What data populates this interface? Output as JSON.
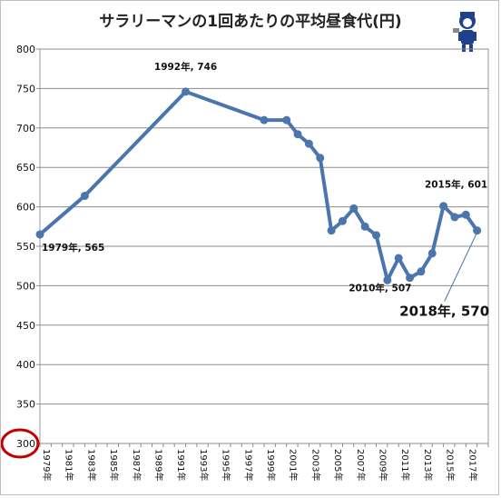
{
  "chart_data": {
    "type": "line",
    "title": "サラリーマンの1回あたりの平均昼食代(円)",
    "xlabel": "",
    "ylabel": "",
    "ylim": [
      300,
      800
    ],
    "yticks": [
      300,
      350,
      400,
      450,
      500,
      550,
      600,
      650,
      700,
      750,
      800
    ],
    "x_tick_labels": [
      "1979年",
      "1981年",
      "1983年",
      "1985年",
      "1987年",
      "1989年",
      "1991年",
      "1993年",
      "1995年",
      "1997年",
      "1999年",
      "2001年",
      "2003年",
      "2005年",
      "2007年",
      "2009年",
      "2011年",
      "2013年",
      "2015年",
      "2017年"
    ],
    "x_tick_years": [
      1979,
      1981,
      1983,
      1985,
      1987,
      1989,
      1991,
      1993,
      1995,
      1997,
      1999,
      2001,
      2003,
      2005,
      2007,
      2009,
      2011,
      2013,
      2015,
      2017
    ],
    "xlim": [
      1979,
      2019
    ],
    "grid": "horizontal",
    "line_color": "#4a76ad",
    "highlight_color": "#c00000",
    "series": [
      {
        "x": [
          1979,
          1983,
          1992,
          1999,
          2001,
          2002,
          2003,
          2004,
          2005,
          2006,
          2007,
          2008,
          2009,
          2010,
          2011,
          2012,
          2013,
          2014,
          2015,
          2016,
          2017,
          2018
        ],
        "values": [
          565,
          614,
          746,
          710,
          710,
          692,
          680,
          662,
          570,
          582,
          598,
          575,
          564,
          507,
          535,
          510,
          518,
          541,
          601,
          587,
          590,
          570
        ]
      }
    ],
    "annotations": [
      {
        "text": "1979年, 565",
        "year": 1979,
        "value": 565,
        "size": "small"
      },
      {
        "text": "1992年, 746",
        "year": 1992,
        "value": 746,
        "size": "small"
      },
      {
        "text": "2010年, 507",
        "year": 2010,
        "value": 507,
        "size": "small"
      },
      {
        "text": "2015年, 601",
        "year": 2015,
        "value": 601,
        "size": "small"
      },
      {
        "text": "2018年, 570",
        "year": 2018,
        "value": 570,
        "size": "large"
      }
    ],
    "highlighted_tick": 300
  }
}
